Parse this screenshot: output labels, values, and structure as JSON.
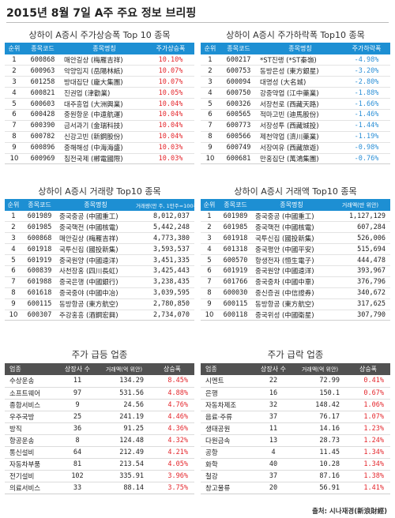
{
  "title": "2015년 8월 7일 A주 주요 정보 브리핑",
  "top_gainers": {
    "title": "상하이 A증시 주가상승폭 Top 10 종목",
    "headers": [
      "순위",
      "종목코드",
      "종목명칭",
      "주가상승폭"
    ],
    "rows": [
      [
        "1",
        "600868",
        "매안길상 (梅雁吉祥)",
        "10.10%"
      ],
      [
        "2",
        "600963",
        "악양임지 (岳陽林紙)",
        "10.07%"
      ],
      [
        "3",
        "601258",
        "방대집단 (龐大集團)",
        "10.07%"
      ],
      [
        "4",
        "600821",
        "진권업 (津勸業)",
        "10.05%"
      ],
      [
        "5",
        "600603",
        "대주흥업 (大洲興業)",
        "10.04%"
      ],
      [
        "6",
        "600428",
        "중원항운 (中遠航運)",
        "10.04%"
      ],
      [
        "7",
        "600390",
        "금서과기 (金瑞科技)",
        "10.04%"
      ],
      [
        "8",
        "600782",
        "신강고빈 (新鋼股份)",
        "10.04%"
      ],
      [
        "9",
        "600896",
        "중해해성 (中海海盛)",
        "10.03%"
      ],
      [
        "10",
        "600969",
        "침전국제 (郴電國際)",
        "10.03%"
      ]
    ]
  },
  "top_losers": {
    "title": "상하이 A증시 주가하락폭 Top10 종목",
    "headers": [
      "순위",
      "종목코드",
      "종목명칭",
      "주가하락폭"
    ],
    "rows": [
      [
        "1",
        "600217",
        "*ST진랭 (*ST秦嶺)",
        "-4.98%"
      ],
      [
        "2",
        "600753",
        "동방은성 (東方銀星)",
        "-3.20%"
      ],
      [
        "3",
        "600094",
        "대명성 (大名城)",
        "-2.80%"
      ],
      [
        "4",
        "600750",
        "강중약업 (江中藥業)",
        "-1.88%"
      ],
      [
        "5",
        "600326",
        "서장천로 (西藏天路)",
        "-1.66%"
      ],
      [
        "6",
        "600565",
        "적마고빈 (迪馬股份)",
        "-1.46%"
      ],
      [
        "7",
        "600773",
        "서장성투 (西藏城投)",
        "-1.44%"
      ],
      [
        "8",
        "600566",
        "제천약업 (濟川藥業)",
        "-1.19%"
      ],
      [
        "9",
        "600749",
        "서장여유 (西藏旅遊)",
        "-0.98%"
      ],
      [
        "10",
        "600681",
        "만홍집단 (萬鴻集團)",
        "-0.76%"
      ]
    ]
  },
  "volume_top": {
    "title": "상하이 A증시 거래량 Top10 종목",
    "headers": [
      "순위",
      "종목코드",
      "종목명칭",
      "거래량(만 주, 1만주=100주)"
    ],
    "rows": [
      [
        "1",
        "601989",
        "중국중공 (中國重工)",
        "8,012,037"
      ],
      [
        "2",
        "601985",
        "중국핵전 (中國核電)",
        "5,442,248"
      ],
      [
        "3",
        "600868",
        "매안길상 (梅雁吉祥)",
        "4,773,380"
      ],
      [
        "4",
        "601918",
        "국투신집 (國投新集)",
        "3,593,537"
      ],
      [
        "5",
        "601919",
        "중국원양 (中國遠洋)",
        "3,451,335"
      ],
      [
        "6",
        "600839",
        "사천장홍 (四川長虹)",
        "3,425,443"
      ],
      [
        "7",
        "601988",
        "중국은행 (中國銀行)",
        "3,238,435"
      ],
      [
        "8",
        "601618",
        "중국중야 (中國中冶)",
        "3,039,595"
      ],
      [
        "9",
        "600115",
        "동방항공 (東方航空)",
        "2,780,850"
      ],
      [
        "10",
        "600307",
        "주강홍흥 (酒鋼宏興)",
        "2,734,070"
      ]
    ]
  },
  "turnover_top": {
    "title": "상하이 A증시 거래액 Top10 종목",
    "headers": [
      "순위",
      "종목코드",
      "종목명칭",
      "거래액(만 위안)"
    ],
    "rows": [
      [
        "1",
        "601989",
        "중국중공 (中國重工)",
        "1,127,129"
      ],
      [
        "2",
        "601985",
        "중국핵전 (中國核電)",
        "607,284"
      ],
      [
        "3",
        "601918",
        "국투신집 (國投新集)",
        "526,006"
      ],
      [
        "4",
        "601318",
        "중국평안 (中國平安)",
        "515,694"
      ],
      [
        "5",
        "600570",
        "항생전자 (恒生電子)",
        "444,478"
      ],
      [
        "6",
        "601919",
        "중국원양 (中國遠洋)",
        "393,967"
      ],
      [
        "7",
        "601766",
        "중국중차 (中國中車)",
        "376,796"
      ],
      [
        "8",
        "600030",
        "중신증권 (中信證券)",
        "340,672"
      ],
      [
        "9",
        "600115",
        "동방항공 (東方航空)",
        "317,625"
      ],
      [
        "10",
        "600118",
        "중국위성 (中國衛星)",
        "307,790"
      ]
    ]
  },
  "sector_up": {
    "title": "주가 급등 업종",
    "headers": [
      "업종",
      "상장사 수",
      "거래액(억 위안)",
      "상승폭"
    ],
    "rows": [
      [
        "수상운송",
        "11",
        "134.29",
        "8.45%"
      ],
      [
        "소프트웨어",
        "97",
        "531.56",
        "4.88%"
      ],
      [
        "종합서비스",
        "9",
        "24.56",
        "4.76%"
      ],
      [
        "우주국방",
        "25",
        "241.19",
        "4.46%"
      ],
      [
        "방직",
        "36",
        "91.25",
        "4.36%"
      ],
      [
        "항공운송",
        "8",
        "124.48",
        "4.32%"
      ],
      [
        "통신설비",
        "64",
        "212.49",
        "4.21%"
      ],
      [
        "자동차부품",
        "81",
        "213.54",
        "4.05%"
      ],
      [
        "전기설비",
        "102",
        "335.91",
        "3.96%"
      ],
      [
        "의료서비스",
        "33",
        "88.14",
        "3.75%"
      ]
    ]
  },
  "sector_down": {
    "title": "주가 급락 업종",
    "headers": [
      "업종",
      "상장사 수",
      "거래액(억 위안)",
      "상승폭"
    ],
    "rows": [
      [
        "시멘트",
        "22",
        "72.99",
        "0.41%"
      ],
      [
        "은행",
        "16",
        "150.1",
        "0.67%"
      ],
      [
        "자동차제조",
        "32",
        "148.42",
        "1.06%"
      ],
      [
        "음료·주류",
        "37",
        "76.17",
        "1.07%"
      ],
      [
        "생태공원",
        "11",
        "14.16",
        "1.23%"
      ],
      [
        "다원금속",
        "13",
        "28.73",
        "1.24%"
      ],
      [
        "공항",
        "4",
        "11.45",
        "1.34%"
      ],
      [
        "화학",
        "40",
        "10.28",
        "1.34%"
      ],
      [
        "철강",
        "37",
        "87.16",
        "1.38%"
      ],
      [
        "창고물류",
        "20",
        "56.91",
        "1.41%"
      ]
    ]
  },
  "source": "출처: 시나재경(新浪財經)",
  "colors": {
    "header_blue": "#1d8fd3",
    "header_dark": "#515151",
    "up_red": "#e4262c",
    "down_blue": "#2b8fd6"
  }
}
